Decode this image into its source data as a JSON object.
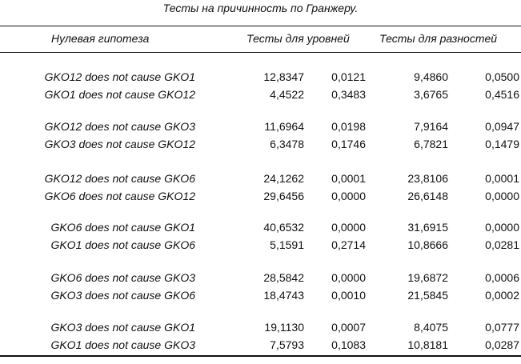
{
  "title": "Тесты на причинность по Гранжеру.",
  "headers": {
    "hypothesis": "Нулевая гипотеза",
    "levels": "Тесты для уровней",
    "differences": "Тесты для разностей"
  },
  "groups": [
    {
      "rows": [
        {
          "hypothesis": "GKO12 does not cause GKO1",
          "lvl_stat": "12,8347",
          "lvl_p": "0,0121",
          "diff_stat": "9,4860",
          "diff_p": "0,0500"
        },
        {
          "hypothesis": "GKO1 does not cause GKO12",
          "lvl_stat": "4,4522",
          "lvl_p": "0,3483",
          "diff_stat": "3,6765",
          "diff_p": "0,4516"
        }
      ]
    },
    {
      "rows": [
        {
          "hypothesis": "GKO12 does not cause GKO3",
          "lvl_stat": "11,6964",
          "lvl_p": "0,0198",
          "diff_stat": "7,9164",
          "diff_p": "0,0947"
        },
        {
          "hypothesis": "GKO3 does not cause GKO12",
          "lvl_stat": "6,3478",
          "lvl_p": "0,1746",
          "diff_stat": "6,7821",
          "diff_p": "0,1479"
        }
      ]
    },
    {
      "rows": [
        {
          "hypothesis": "GKO12 does not cause GKO6",
          "lvl_stat": "24,1262",
          "lvl_p": "0,0001",
          "diff_stat": "23,8106",
          "diff_p": "0,0001"
        },
        {
          "hypothesis": "GKO6 does not cause GKO12",
          "lvl_stat": "29,6456",
          "lvl_p": "0,0000",
          "diff_stat": "26,6148",
          "diff_p": "0,0000"
        }
      ]
    },
    {
      "rows": [
        {
          "hypothesis": "GKO6 does not cause GKO1",
          "lvl_stat": "40,6532",
          "lvl_p": "0,0000",
          "diff_stat": "31,6915",
          "diff_p": "0,0000"
        },
        {
          "hypothesis": "GKO1 does not cause GKO6",
          "lvl_stat": "5,1591",
          "lvl_p": "0,2714",
          "diff_stat": "10,8666",
          "diff_p": "0,0281"
        }
      ]
    },
    {
      "rows": [
        {
          "hypothesis": "GKO6 does not cause GKO3",
          "lvl_stat": "28,5842",
          "lvl_p": "0,0000",
          "diff_stat": "19,6872",
          "diff_p": "0,0006"
        },
        {
          "hypothesis": "GKO3 does not cause GKO6",
          "lvl_stat": "18,4743",
          "lvl_p": "0,0010",
          "diff_stat": "21,5845",
          "diff_p": "0,0002"
        }
      ]
    },
    {
      "rows": [
        {
          "hypothesis": "GKO3 does not cause GKO1",
          "lvl_stat": "19,1130",
          "lvl_p": "0,0007",
          "diff_stat": "8,4075",
          "diff_p": "0,0777"
        },
        {
          "hypothesis": "GKO1 does not cause GKO3",
          "lvl_stat": "7,5793",
          "lvl_p": "0,1083",
          "diff_stat": "10,8181",
          "diff_p": "0,0287"
        }
      ]
    }
  ]
}
